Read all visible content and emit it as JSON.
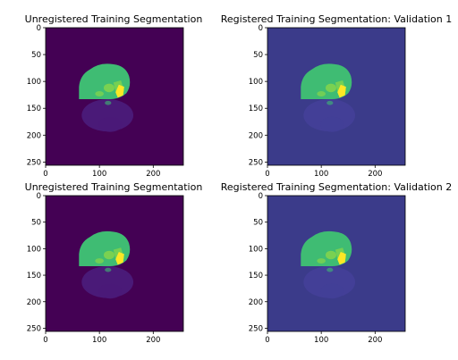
{
  "figure": {
    "panels": [
      {
        "title": "Unregistered Training Segmentation",
        "style": "viridis-dark"
      },
      {
        "title": "Registered Training Segmentation: Validation 1",
        "style": "viridis-mid"
      },
      {
        "title": "Unregistered Training Segmentation",
        "style": "viridis-dark"
      },
      {
        "title": "Registered Training Segmentation: Validation 2",
        "style": "viridis-mid"
      }
    ],
    "y_ticks": [
      "0",
      "50",
      "100",
      "150",
      "200",
      "250"
    ],
    "x_ticks": [
      "0",
      "100",
      "200"
    ],
    "colors": {
      "bg_dark": "#440154",
      "bg_mid": "#3b3b8a",
      "brain_green": "#3fbc73",
      "brain_light": "#7ad151",
      "brain_yellow": "#fde725",
      "shadow_dark": "#4a1a78",
      "shadow_mid": "#433f97"
    }
  }
}
